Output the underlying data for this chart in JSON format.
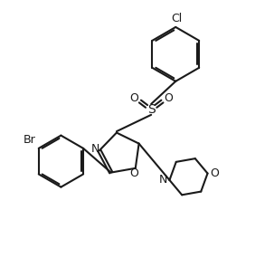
{
  "bg_color": "#ffffff",
  "line_color": "#1a1a1a",
  "line_width": 1.5,
  "figsize": [
    3.03,
    2.85
  ],
  "dpi": 100,
  "xlim": [
    0,
    10
  ],
  "ylim": [
    0,
    10
  ]
}
